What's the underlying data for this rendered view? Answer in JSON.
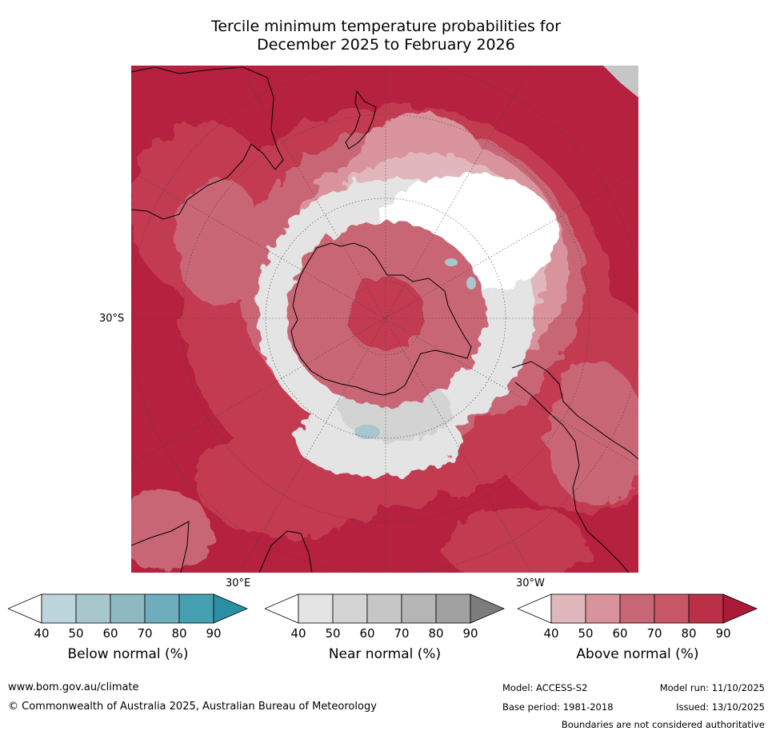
{
  "title": {
    "line1": "Tercile minimum temperature probabilities for",
    "line2": "December 2025 to February 2026"
  },
  "map": {
    "projection": "south-polar-stereographic",
    "lat_label": "30°S",
    "lon_label_east": "30°E",
    "lon_label_west": "30°W",
    "colors": {
      "above_90": "#b5213e",
      "above_80": "#c33a51",
      "above_70": "#c96676",
      "above_60": "#d9939c",
      "above_50": "#e1b7bc",
      "near_40": "#ffffff",
      "near_50": "#e4e4e4",
      "near_60": "#d3d3d3",
      "below_50": "#a7c7cd"
    }
  },
  "colorbars": [
    {
      "name": "below",
      "label": "Below normal (%)",
      "ticks": [
        "40",
        "50",
        "60",
        "70",
        "80",
        "90"
      ],
      "colors": [
        "#ffffff",
        "#bdd5dc",
        "#a7c7cd",
        "#8fb9c1",
        "#6eadbc",
        "#45a1b2",
        "#2a8fa3"
      ]
    },
    {
      "name": "near",
      "label": "Near normal (%)",
      "ticks": [
        "40",
        "50",
        "60",
        "70",
        "80",
        "90"
      ],
      "colors": [
        "#ffffff",
        "#e4e4e4",
        "#d4d4d4",
        "#c6c6c6",
        "#b5b5b5",
        "#a1a1a1",
        "#7c7c7c"
      ]
    },
    {
      "name": "above",
      "label": "Above normal (%)",
      "ticks": [
        "40",
        "50",
        "60",
        "70",
        "80",
        "90"
      ],
      "colors": [
        "#ffffff",
        "#e1b7bc",
        "#d9939c",
        "#c96676",
        "#c75766",
        "#ba3048",
        "#ab1a36"
      ]
    }
  ],
  "footer": {
    "website": "www.bom.gov.au/climate",
    "copyright": "© Commonwealth of Australia 2025, Australian Bureau of Meteorology",
    "model": "Model: ACCESS-S2",
    "base_period": "Base period: 1981-2018",
    "model_run": "Model run: 11/10/2025",
    "issued": "Issued: 13/10/2025",
    "disclaimer": "Boundaries are not considered authoritative"
  }
}
